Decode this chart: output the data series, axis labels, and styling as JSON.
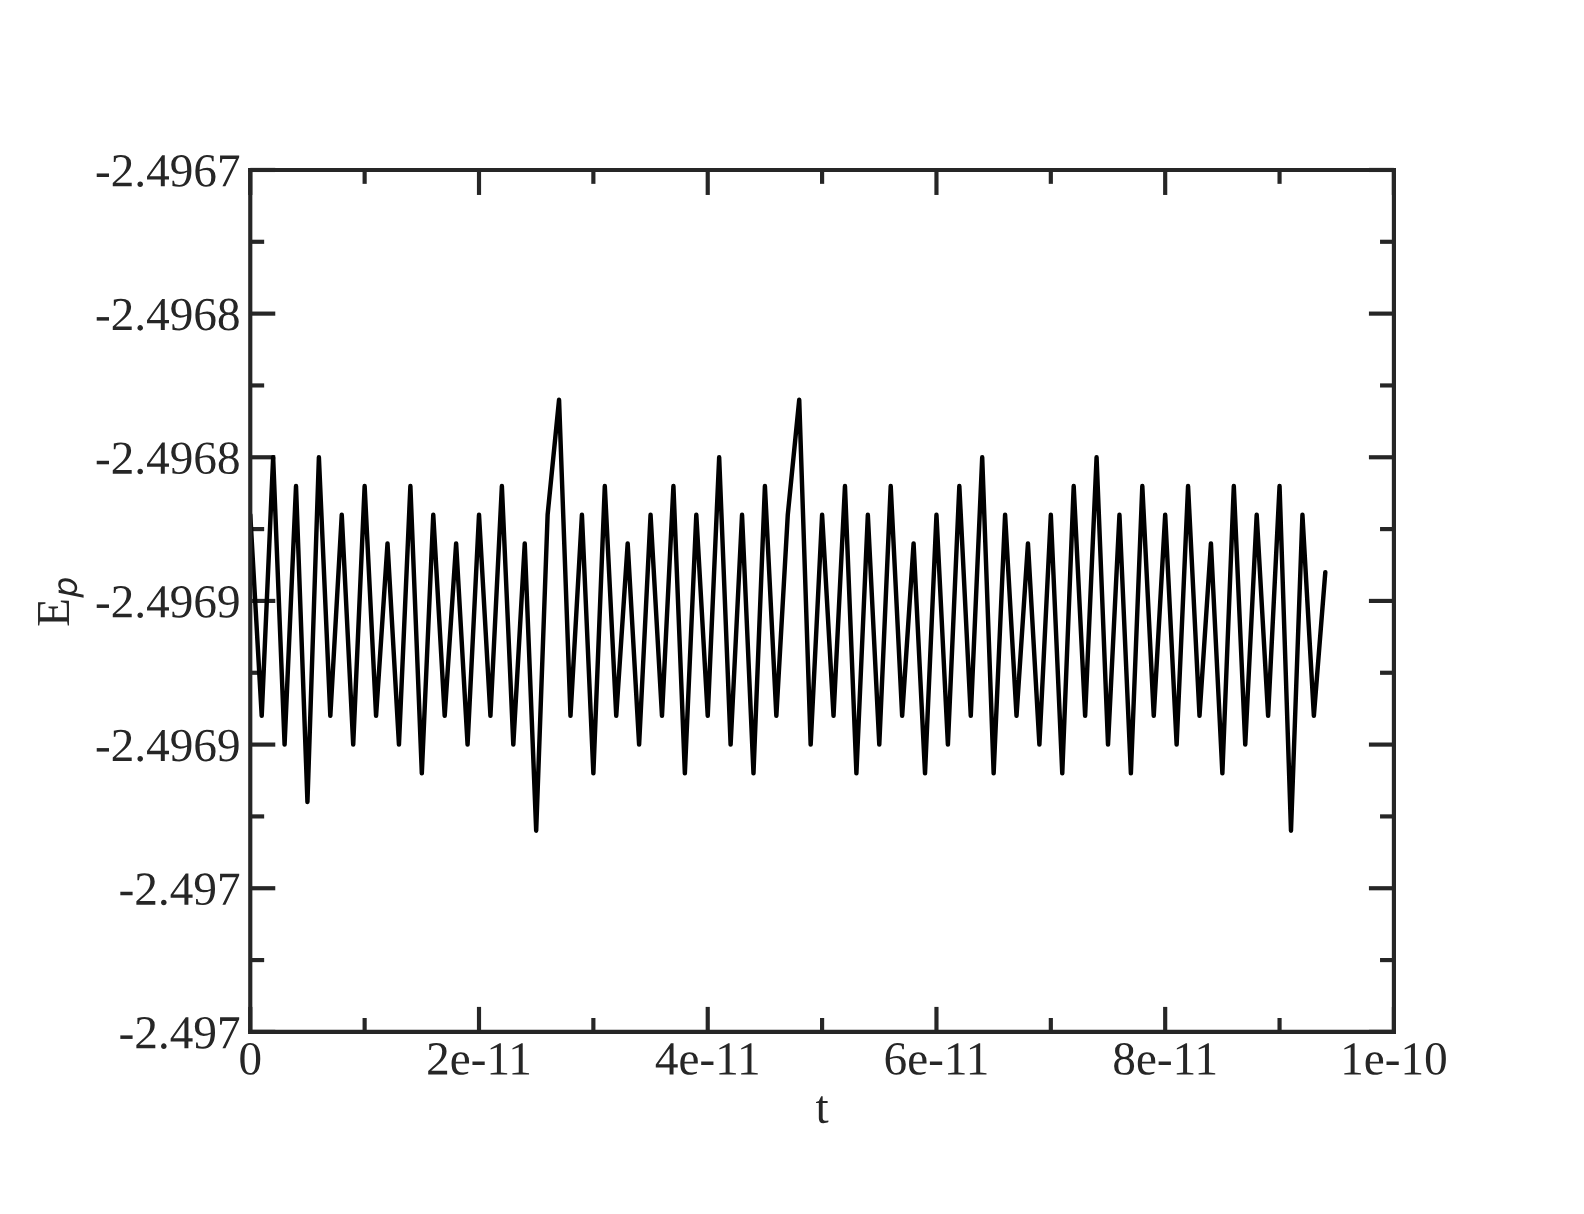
{
  "chart_data": {
    "type": "line",
    "xlabel": "t",
    "ylabel": "E$_{p}$",
    "xlim": [
      0,
      1e-10
    ],
    "xticks": [
      0,
      {
        "value": 1e-11,
        "label": null
      },
      {
        "value": 2e-11,
        "label": "2e-11"
      },
      {
        "value": 3e-11,
        "label": null
      },
      {
        "value": 4e-11,
        "label": "4e-11"
      },
      {
        "value": 5e-11,
        "label": null
      },
      {
        "value": 6e-11,
        "label": "6e-11"
      },
      {
        "value": 7e-11,
        "label": null
      },
      {
        "value": 8e-11,
        "label": "8e-11"
      },
      {
        "value": 9e-11,
        "label": null
      },
      {
        "value": 1e-10,
        "label": "1e-10"
      }
    ],
    "ylim": [
      -2.497,
      -2.4967
    ],
    "yticks": [
      {
        "value": -2.497,
        "label": "-2.497"
      },
      {
        "value": -2.496975,
        "label": null
      },
      {
        "value": -2.49695,
        "label": "-2.497"
      },
      {
        "value": -2.496925,
        "label": null
      },
      {
        "value": -2.4969,
        "label": "-2.4969"
      },
      {
        "value": -2.496875,
        "label": null
      },
      {
        "value": -2.49685,
        "label": "-2.4969"
      },
      {
        "value": -2.496825,
        "label": null
      },
      {
        "value": -2.4968,
        "label": "-2.4968"
      },
      {
        "value": -2.496775,
        "label": null
      },
      {
        "value": -2.49675,
        "label": "-2.4968"
      },
      {
        "value": -2.496725,
        "label": null
      },
      {
        "value": -2.4967,
        "label": "-2.4967"
      }
    ],
    "grid": false,
    "legend": false,
    "marker": "none",
    "line_style": "solid",
    "series": [
      {
        "color": "#000000",
        "x": [
          0,
          1e-12,
          2e-12,
          3e-12,
          4e-12,
          5e-12,
          6e-12,
          7e-12,
          8e-12,
          9e-12,
          1e-11,
          1.1e-11,
          1.2e-11,
          1.3e-11,
          1.4e-11,
          1.5e-11,
          1.6e-11,
          1.7e-11,
          1.8e-11,
          1.9e-11,
          2e-11,
          2.1e-11,
          2.2e-11,
          2.3e-11,
          2.4e-11,
          2.5e-11,
          2.6e-11,
          2.7e-11,
          2.8e-11,
          2.9e-11,
          3e-11,
          3.1e-11,
          3.2e-11,
          3.3e-11,
          3.4e-11,
          3.5e-11,
          3.6e-11,
          3.7e-11,
          3.8e-11,
          3.9e-11,
          4e-11,
          4.1e-11,
          4.2e-11,
          4.3e-11,
          4.4e-11,
          4.5e-11,
          4.6e-11,
          4.7e-11,
          4.8e-11,
          4.9e-11,
          5e-11,
          5.1e-11,
          5.2e-11,
          5.3e-11,
          5.4e-11,
          5.5e-11,
          5.6e-11,
          5.7e-11,
          5.8e-11,
          5.9e-11,
          6e-11,
          6.1e-11,
          6.2e-11,
          6.3e-11,
          6.4e-11,
          6.5e-11,
          6.6e-11,
          6.7e-11,
          6.8e-11,
          6.9e-11,
          7e-11,
          7.1e-11,
          7.2e-11,
          7.3e-11,
          7.4e-11,
          7.5e-11,
          7.6e-11,
          7.7e-11,
          7.8e-11,
          7.9e-11,
          8e-11,
          8.1e-11,
          8.2e-11,
          8.3e-11,
          8.4e-11,
          8.5e-11,
          8.6e-11,
          8.7e-11,
          8.8e-11,
          8.9e-11,
          9e-11,
          9.1e-11,
          9.2e-11,
          9.3e-11,
          9.4e-11
        ],
        "values": [
          -2.49682,
          -2.49689,
          -2.4968,
          -2.4969,
          -2.49681,
          -2.49692,
          -2.4968,
          -2.49689,
          -2.49682,
          -2.4969,
          -2.49681,
          -2.49689,
          -2.49683,
          -2.4969,
          -2.49681,
          -2.49691,
          -2.49682,
          -2.49689,
          -2.49683,
          -2.4969,
          -2.49682,
          -2.49689,
          -2.49681,
          -2.4969,
          -2.49683,
          -2.49693,
          -2.49682,
          -2.49678,
          -2.49689,
          -2.49682,
          -2.49691,
          -2.49681,
          -2.49689,
          -2.49683,
          -2.4969,
          -2.49682,
          -2.49689,
          -2.49681,
          -2.49691,
          -2.49682,
          -2.49689,
          -2.4968,
          -2.4969,
          -2.49682,
          -2.49691,
          -2.49681,
          -2.49689,
          -2.49682,
          -2.49678,
          -2.4969,
          -2.49682,
          -2.49689,
          -2.49681,
          -2.49691,
          -2.49682,
          -2.4969,
          -2.49681,
          -2.49689,
          -2.49683,
          -2.49691,
          -2.49682,
          -2.4969,
          -2.49681,
          -2.49689,
          -2.4968,
          -2.49691,
          -2.49682,
          -2.49689,
          -2.49683,
          -2.4969,
          -2.49682,
          -2.49691,
          -2.49681,
          -2.49689,
          -2.4968,
          -2.4969,
          -2.49682,
          -2.49691,
          -2.49681,
          -2.49689,
          -2.49682,
          -2.4969,
          -2.49681,
          -2.49689,
          -2.49683,
          -2.49691,
          -2.49681,
          -2.4969,
          -2.49682,
          -2.49689,
          -2.49681,
          -2.49693,
          -2.49682,
          -2.49689,
          -2.49684
        ]
      }
    ]
  }
}
